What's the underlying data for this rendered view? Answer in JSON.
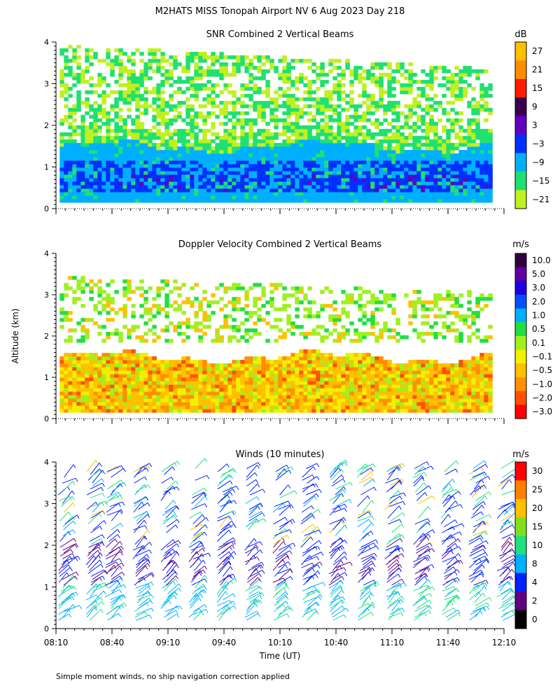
{
  "figure_title": "M2HATS MISS Tonopah Airport NV   6 Aug 2023 Day 218",
  "y_axis_label": "Altitude (km)",
  "x_axis_label": "Time (UT)",
  "footnote": "Simple moment winds, no ship navigation correction applied",
  "chart_data": [
    {
      "type": "heatmap",
      "title": "SNR Combined 2 Vertical Beams",
      "ylabel": "Altitude (km)",
      "ylim": [
        0,
        4
      ],
      "yticks": [
        "0",
        "1",
        "2",
        "3",
        "4"
      ],
      "xlim_minutes_after_0810": [
        0,
        240
      ],
      "colorbar": {
        "unit": "dB",
        "tick_labels": [
          "27",
          "21",
          "15",
          "9",
          "3",
          "−3",
          "−9",
          "−15",
          "−21"
        ],
        "colors": [
          "#ffc000",
          "#ff8c00",
          "#ff1a00",
          "#3a0050",
          "#6000c0",
          "#0030ff",
          "#00b0ff",
          "#20e070",
          "#c0f020"
        ]
      },
      "layers": [
        {
          "name": "boundary layer (-9 to -3 dB)",
          "altitude_km": [
            0.15,
            1.5
          ],
          "color": "#00b0ff"
        },
        {
          "name": "strong return (-3 to 3 dB)",
          "altitude_km": [
            0.3,
            1.2
          ],
          "color": "#0030ff"
        },
        {
          "name": "weak upper echoes (-21 to -15 dB)",
          "altitude_km": [
            1.5,
            3.9
          ],
          "color": "#c0f020"
        }
      ]
    },
    {
      "type": "heatmap",
      "title": "Doppler Velocity Combined 2 Vertical Beams",
      "ylabel": "Altitude (km)",
      "ylim": [
        0,
        4
      ],
      "yticks": [
        "0",
        "1",
        "2",
        "3",
        "4"
      ],
      "xlim_minutes_after_0810": [
        0,
        240
      ],
      "colorbar": {
        "unit": "m/s",
        "tick_labels": [
          "10.0",
          "5.0",
          "3.0",
          "2.0",
          "1.0",
          "0.5",
          "0.1",
          "−0.1",
          "−0.5",
          "−1.0",
          "−2.0",
          "−3.0"
        ],
        "colors": [
          "#300040",
          "#6000a0",
          "#2000e0",
          "#0050ff",
          "#00b0ff",
          "#20e040",
          "#a0f020",
          "#f0f000",
          "#ffc000",
          "#ff9000",
          "#ff5000",
          "#ff0000"
        ]
      },
      "layers": [
        {
          "name": "boundary layer downdraft (-1.0 to -0.5 m/s)",
          "altitude_km": [
            0.15,
            1.5
          ],
          "color": "#ffc000"
        },
        {
          "name": "upper weak echoes (0.1 to 0.5 m/s)",
          "altitude_km": [
            1.8,
            3.4
          ],
          "color": "#a0f020"
        }
      ]
    },
    {
      "type": "scatter",
      "title": "Winds (10 minutes)",
      "ylabel": "Altitude (km)",
      "ylim": [
        0,
        4
      ],
      "yticks": [
        "0",
        "1",
        "2",
        "3",
        "4"
      ],
      "xlabel": "Time (UT)",
      "x_tick_labels": [
        "08:10",
        "08:40",
        "09:10",
        "09:40",
        "10:10",
        "10:40",
        "11:10",
        "11:40",
        "12:10"
      ],
      "xlim_minutes_after_0810": [
        0,
        240
      ],
      "profile_times_minutes": [
        0,
        15,
        25,
        40,
        55,
        70,
        85,
        100,
        115,
        130,
        145,
        160,
        175,
        190,
        205,
        220,
        235
      ],
      "marker": "wind barbs",
      "colorbar": {
        "unit": "m/s",
        "tick_labels": [
          "30",
          "25",
          "20",
          "15",
          "10",
          "8",
          "4",
          "2",
          "0"
        ],
        "colors": [
          "#ff0000",
          "#ff8000",
          "#ffc000",
          "#80e020",
          "#20e080",
          "#00b0ff",
          "#0020ff",
          "#600080",
          "#000000"
        ]
      }
    }
  ]
}
